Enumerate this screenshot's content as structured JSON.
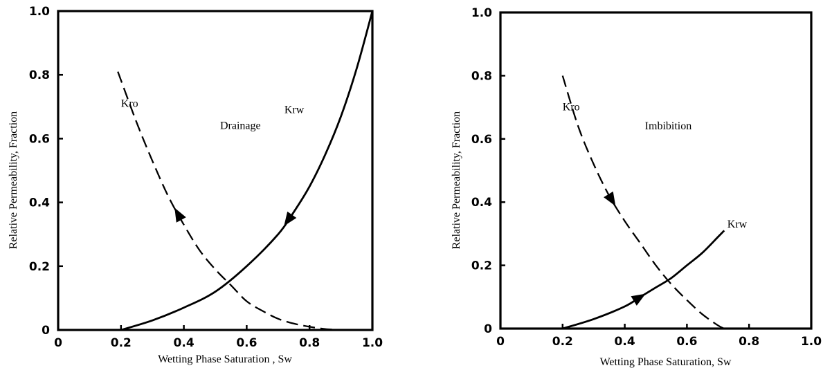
{
  "chart_data": [
    {
      "type": "line",
      "xlabel": "Wetting Phase Saturation , Sw",
      "ylabel": "Relative Permeability, Fraction",
      "xlim": [
        0,
        1.0
      ],
      "ylim": [
        0,
        1.0
      ],
      "x_ticks": [
        "0",
        "0.2",
        "0.4",
        "0.6",
        "0.8",
        "1.0"
      ],
      "y_ticks": [
        "0",
        "0.2",
        "0.4",
        "0.6",
        "0.8",
        "1.0"
      ],
      "annotation": "Drainage",
      "grid": false,
      "series": [
        {
          "name": "Kro",
          "style": "dashed",
          "x": [
            0.19,
            0.25,
            0.3,
            0.35,
            0.4,
            0.45,
            0.5,
            0.55,
            0.6,
            0.65,
            0.7,
            0.75,
            0.8,
            0.85,
            0.9
          ],
          "y": [
            0.81,
            0.65,
            0.53,
            0.42,
            0.33,
            0.25,
            0.19,
            0.14,
            0.09,
            0.06,
            0.035,
            0.02,
            0.01,
            0.003,
            0.0
          ]
        },
        {
          "name": "Krw",
          "style": "solid",
          "x": [
            0.2,
            0.3,
            0.4,
            0.5,
            0.6,
            0.7,
            0.75,
            0.8,
            0.85,
            0.9,
            0.95,
            1.0
          ],
          "y": [
            0.0,
            0.03,
            0.07,
            0.12,
            0.2,
            0.3,
            0.37,
            0.45,
            0.55,
            0.67,
            0.82,
            1.0
          ]
        }
      ],
      "arrows": [
        {
          "series": "Kro",
          "at_x": 0.38,
          "direction": "toward-lower-sw"
        },
        {
          "series": "Krw",
          "at_x": 0.73,
          "direction": "toward-lower-sw"
        }
      ]
    },
    {
      "type": "line",
      "xlabel": "Wetting Phase Saturation, Sw",
      "ylabel": "Relative Permeability, Fraction",
      "xlim": [
        0,
        1.0
      ],
      "ylim": [
        0,
        1.0
      ],
      "x_ticks": [
        "0",
        "0.2",
        "0.4",
        "0.6",
        "0.8",
        "1.0"
      ],
      "y_ticks": [
        "0",
        "0.2",
        "0.4",
        "0.6",
        "0.8",
        "1.0"
      ],
      "annotation": "Imbibition",
      "grid": false,
      "series": [
        {
          "name": "Kro",
          "style": "dashed",
          "x": [
            0.2,
            0.25,
            0.3,
            0.35,
            0.4,
            0.45,
            0.5,
            0.55,
            0.6,
            0.65,
            0.7,
            0.72
          ],
          "y": [
            0.8,
            0.64,
            0.52,
            0.42,
            0.34,
            0.27,
            0.2,
            0.14,
            0.09,
            0.045,
            0.01,
            0.0
          ]
        },
        {
          "name": "Krw",
          "style": "solid",
          "x": [
            0.2,
            0.3,
            0.4,
            0.45,
            0.5,
            0.55,
            0.6,
            0.65,
            0.7,
            0.72
          ],
          "y": [
            0.0,
            0.03,
            0.07,
            0.1,
            0.13,
            0.16,
            0.2,
            0.24,
            0.29,
            0.31
          ]
        }
      ],
      "arrows": [
        {
          "series": "Kro",
          "at_x": 0.36,
          "direction": "toward-higher-sw"
        },
        {
          "series": "Krw",
          "at_x": 0.45,
          "direction": "toward-higher-sw"
        }
      ]
    }
  ]
}
